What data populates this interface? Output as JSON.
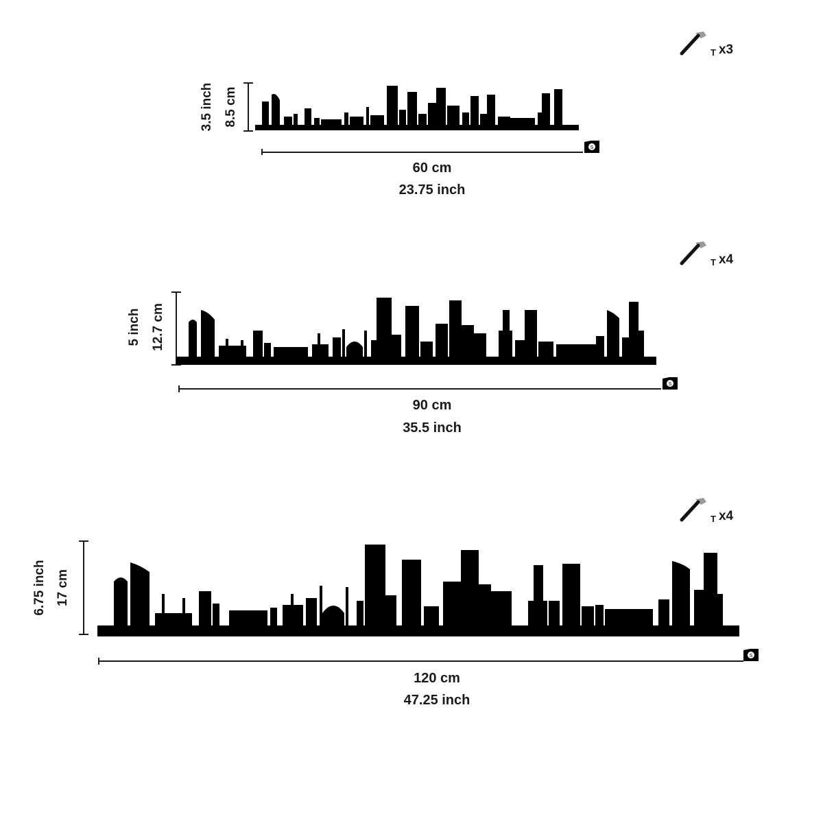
{
  "variants": [
    {
      "id": "small",
      "height_inch": "3.5 inch",
      "height_cm": "8.5 cm",
      "width_cm": "60 cm",
      "width_inch": "23.75 inch",
      "hardware_count": "x3"
    },
    {
      "id": "medium",
      "height_inch": "5 inch",
      "height_cm": "12.7 cm",
      "width_cm": "90 cm",
      "width_inch": "35.5 inch",
      "hardware_count": "x4"
    },
    {
      "id": "large",
      "height_inch": "6.75 inch",
      "height_cm": "17 cm",
      "width_cm": "120 cm",
      "width_inch": "47.25 inch",
      "hardware_count": "x4"
    }
  ],
  "icons": {
    "hardware": "hammer-icon",
    "nail": "nail-icon",
    "measure": "tape-measure-icon"
  },
  "colors": {
    "silhouette": "#000000",
    "measure_line": "#1a1a1a",
    "hammer_head": "#9a9a9a"
  }
}
